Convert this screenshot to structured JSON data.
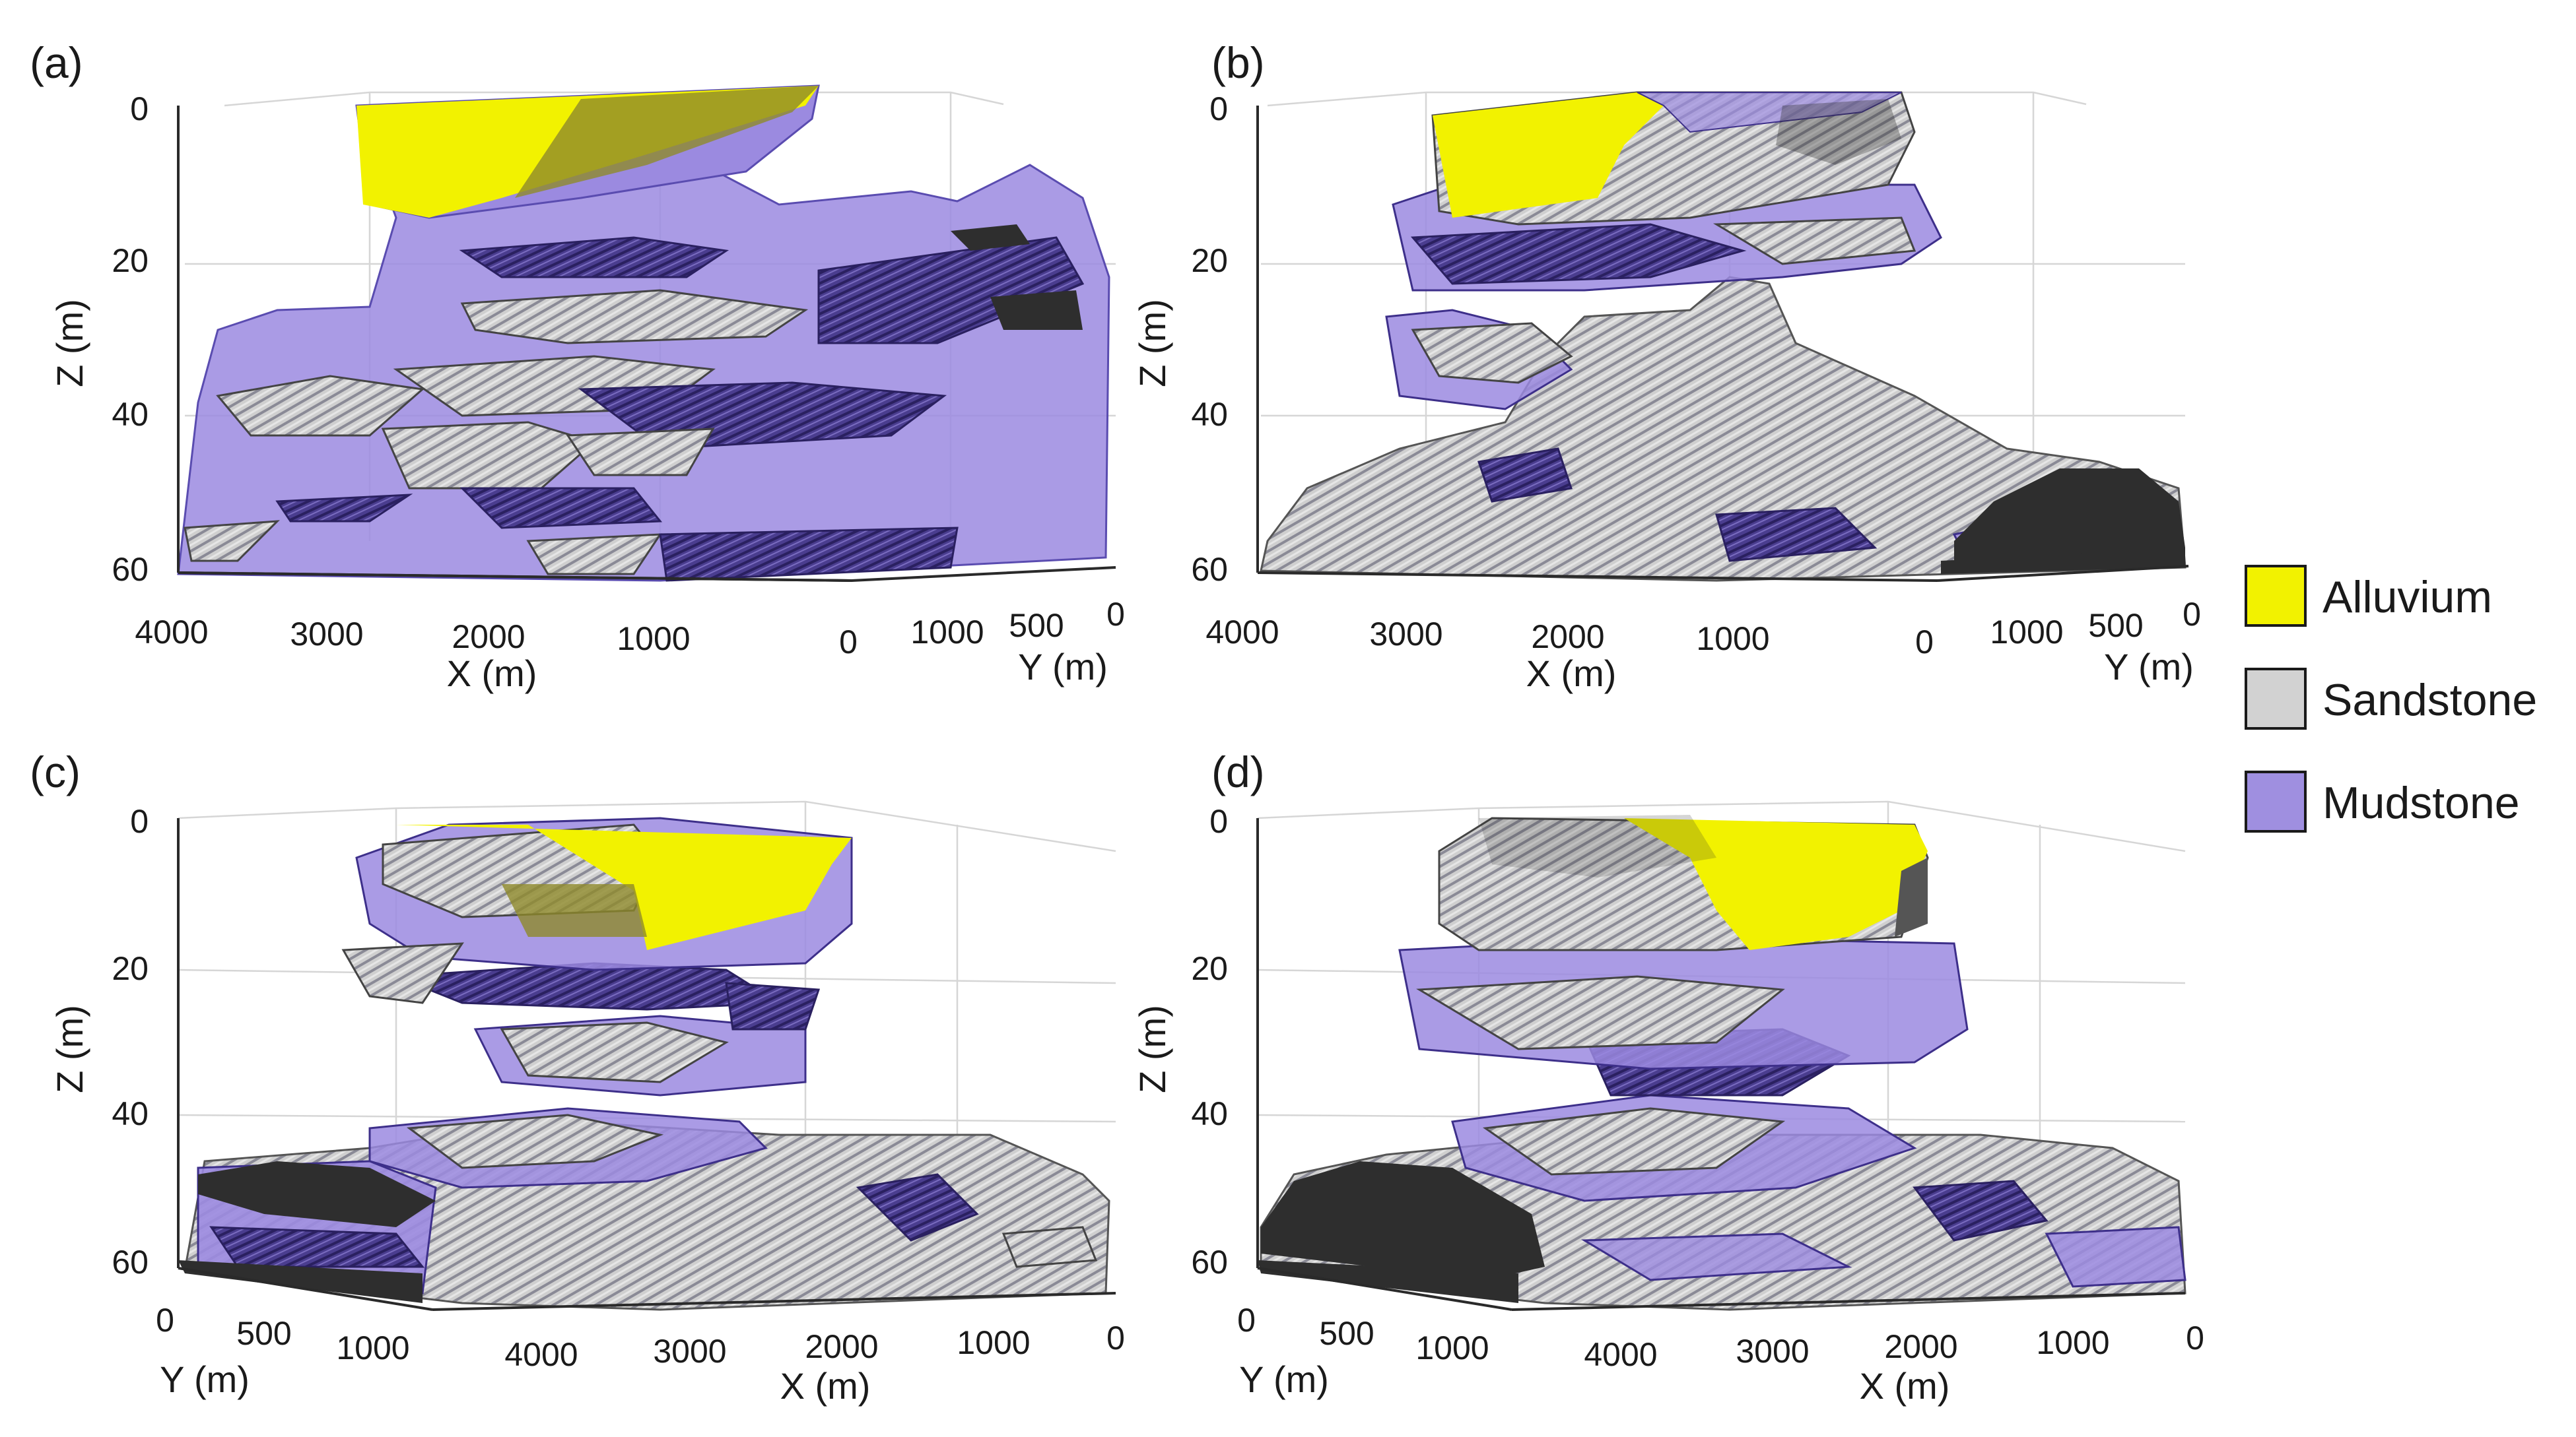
{
  "panels": {
    "a": {
      "letter": "(a)",
      "z_title": "Z (m)",
      "x_title": "X (m)",
      "y_title": "Y (m)",
      "z_ticks": [
        "0",
        "20",
        "40",
        "60"
      ],
      "x_ticks": [
        "4000",
        "3000",
        "2000",
        "1000",
        "0"
      ],
      "y_ticks": [
        "1000",
        "500",
        "0"
      ]
    },
    "b": {
      "letter": "(b)",
      "z_title": "Z (m)",
      "x_title": "X (m)",
      "y_title": "Y (m)",
      "z_ticks": [
        "0",
        "20",
        "40",
        "60"
      ],
      "x_ticks": [
        "4000",
        "3000",
        "2000",
        "1000",
        "0"
      ],
      "y_ticks": [
        "1000",
        "500",
        "0"
      ]
    },
    "c": {
      "letter": "(c)",
      "z_title": "Z (m)",
      "x_title": "X (m)",
      "y_title": "Y (m)",
      "z_ticks": [
        "0",
        "20",
        "40",
        "60"
      ],
      "x_ticks": [
        "4000",
        "3000",
        "2000",
        "1000",
        "0"
      ],
      "y_ticks": [
        "0",
        "500",
        "1000"
      ]
    },
    "d": {
      "letter": "(d)",
      "z_title": "Z (m)",
      "x_title": "X (m)",
      "y_title": "Y (m)",
      "z_ticks": [
        "0",
        "20",
        "40",
        "60"
      ],
      "x_ticks": [
        "4000",
        "3000",
        "2000",
        "1000",
        "0"
      ],
      "y_ticks": [
        "0",
        "500",
        "1000"
      ]
    }
  },
  "legend": [
    {
      "label": "Alluvium",
      "color": "#f2f200"
    },
    {
      "label": "Sandstone",
      "color": "#d2d2d2"
    },
    {
      "label": "Mudstone",
      "color": "#9f8fe0"
    }
  ],
  "colors": {
    "alluvium": "#f2f200",
    "alluvium_dark": "#8f8a2a",
    "sandstone": "#d4d4d4",
    "sandstone_hatch": "#8e8e96",
    "mudstone_fill": "#9b8ae0",
    "mudstone_dark": "#3d2f8a",
    "clast_dark": "#2e2e2e"
  }
}
